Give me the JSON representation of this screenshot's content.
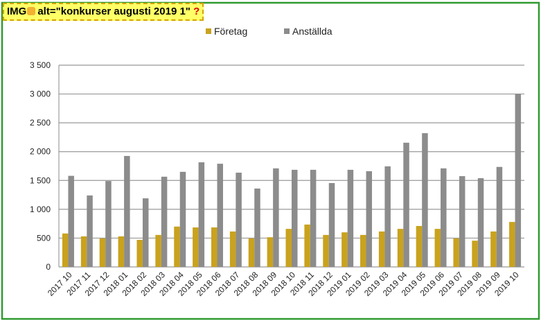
{
  "overlay": {
    "prefix": "IMG",
    "alt": "alt=\"konkurser augusti 2019 1\"",
    "icon": "?"
  },
  "chart_data": {
    "type": "bar",
    "categories": [
      "2017 10",
      "2017 11",
      "2017 12",
      "2018 01",
      "2018 02",
      "2018 03",
      "2018 04",
      "2018 05",
      "2018 06",
      "2018 07",
      "2018 08",
      "2018 09",
      "2018 10",
      "2018 11",
      "2018 12",
      "2019 01",
      "2019 02",
      "2019 03",
      "2019 04",
      "2019 05",
      "2019 06",
      "2019 07",
      "2019 08",
      "2019 09",
      "2019 10"
    ],
    "series": [
      {
        "name": "Företag",
        "color": "#c9a21e",
        "values": [
          580,
          530,
          495,
          530,
          470,
          555,
          700,
          685,
          685,
          615,
          495,
          515,
          660,
          735,
          555,
          600,
          555,
          615,
          660,
          710,
          660,
          495,
          455,
          615,
          780
        ]
      },
      {
        "name": "Anställda",
        "color": "#8c8c8c",
        "values": [
          1580,
          1240,
          1490,
          1925,
          1190,
          1565,
          1650,
          1815,
          1790,
          1635,
          1360,
          1710,
          1685,
          1685,
          1455,
          1685,
          1660,
          1745,
          2155,
          2320,
          1710,
          1575,
          1540,
          1735,
          3000
        ]
      }
    ],
    "ylim": [
      0,
      3500
    ],
    "yticks": [
      0,
      500,
      {
        "value": 1000,
        "label": "1 000"
      },
      {
        "value": 1500,
        "label": "1 500"
      },
      {
        "value": 2000,
        "label": "2 000"
      },
      {
        "value": 2500,
        "label": "2 500"
      },
      {
        "value": 3000,
        "label": "3 000"
      },
      {
        "value": 3500,
        "label": "3 500"
      }
    ],
    "grid": true,
    "legend": "top"
  }
}
